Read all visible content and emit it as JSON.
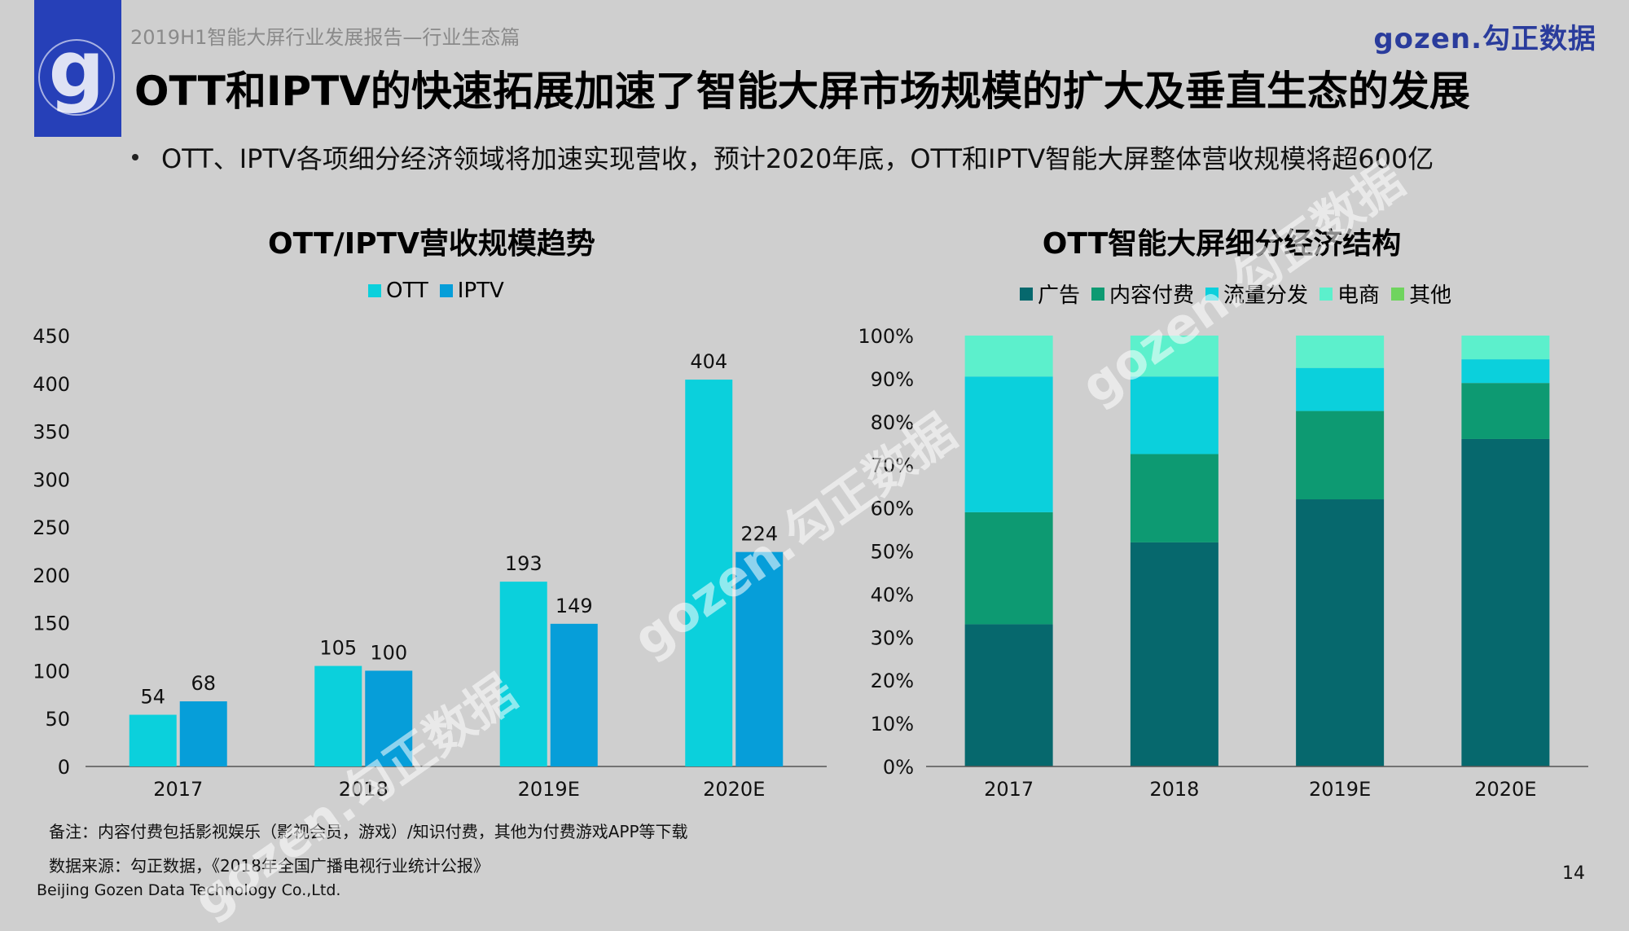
{
  "header": {
    "report_title": "2019H1智能大屏行业发展报告—行业生态篇",
    "brand": "gozen.勾正数据",
    "headline": "OTT和IPTV的快速拓展加速了智能大屏市场规模的扩大及垂直生态的发展",
    "bullet": "OTT、IPTV各项细分经济领域将加速实现营收，预计2020年底，OTT和IPTV智能大屏整体营收规模将超600亿"
  },
  "colors": {
    "ott": "#0bd0dc",
    "iptv": "#069ed9",
    "ads": "#06686d",
    "content": "#0d9a72",
    "traffic": "#0bd0dc",
    "ecommerce": "#5cf0cc",
    "other": "#6fd45e"
  },
  "chart_data": [
    {
      "type": "bar",
      "title": "OTT/IPTV营收规模趋势",
      "categories": [
        "2017",
        "2018",
        "2019E",
        "2020E"
      ],
      "series": [
        {
          "name": "OTT",
          "values": [
            54,
            105,
            193,
            404
          ]
        },
        {
          "name": "IPTV",
          "values": [
            68,
            100,
            149,
            224
          ]
        }
      ],
      "ylim": [
        0,
        450
      ],
      "yticks": [
        "0",
        "50",
        "100",
        "150",
        "200",
        "250",
        "300",
        "350",
        "400",
        "450"
      ],
      "legend": "top-center"
    },
    {
      "type": "bar",
      "stacked": true,
      "title": "OTT智能大屏细分经济结构",
      "categories": [
        "2017",
        "2018",
        "2019E",
        "2020E"
      ],
      "series": [
        {
          "name": "广告",
          "values": [
            33,
            52,
            62,
            76
          ]
        },
        {
          "name": "内容付费",
          "values": [
            26,
            20.5,
            20.5,
            13
          ]
        },
        {
          "name": "流量分发",
          "values": [
            31.5,
            18,
            10,
            5.5
          ]
        },
        {
          "name": "电商",
          "values": [
            9.5,
            9.5,
            7.5,
            5.5
          ]
        },
        {
          "name": "其他",
          "values": [
            0,
            0,
            0,
            0
          ]
        }
      ],
      "ylim": [
        0,
        100
      ],
      "yticks": [
        "0%",
        "10%",
        "20%",
        "30%",
        "40%",
        "50%",
        "60%",
        "70%",
        "80%",
        "90%",
        "100%"
      ],
      "legend": "top-center"
    }
  ],
  "notes": {
    "remark": "备注：内容付费包括影视娱乐（影视会员，游戏）/知识付费，其他为付费游戏APP等下载",
    "source": "数据来源：勾正数据，《2018年全国广播电视行业统计公报》"
  },
  "footer": {
    "company": "Beijing Gozen Data Technology Co.,Ltd.",
    "page": "14"
  },
  "watermark": "gozen.勾正数据"
}
